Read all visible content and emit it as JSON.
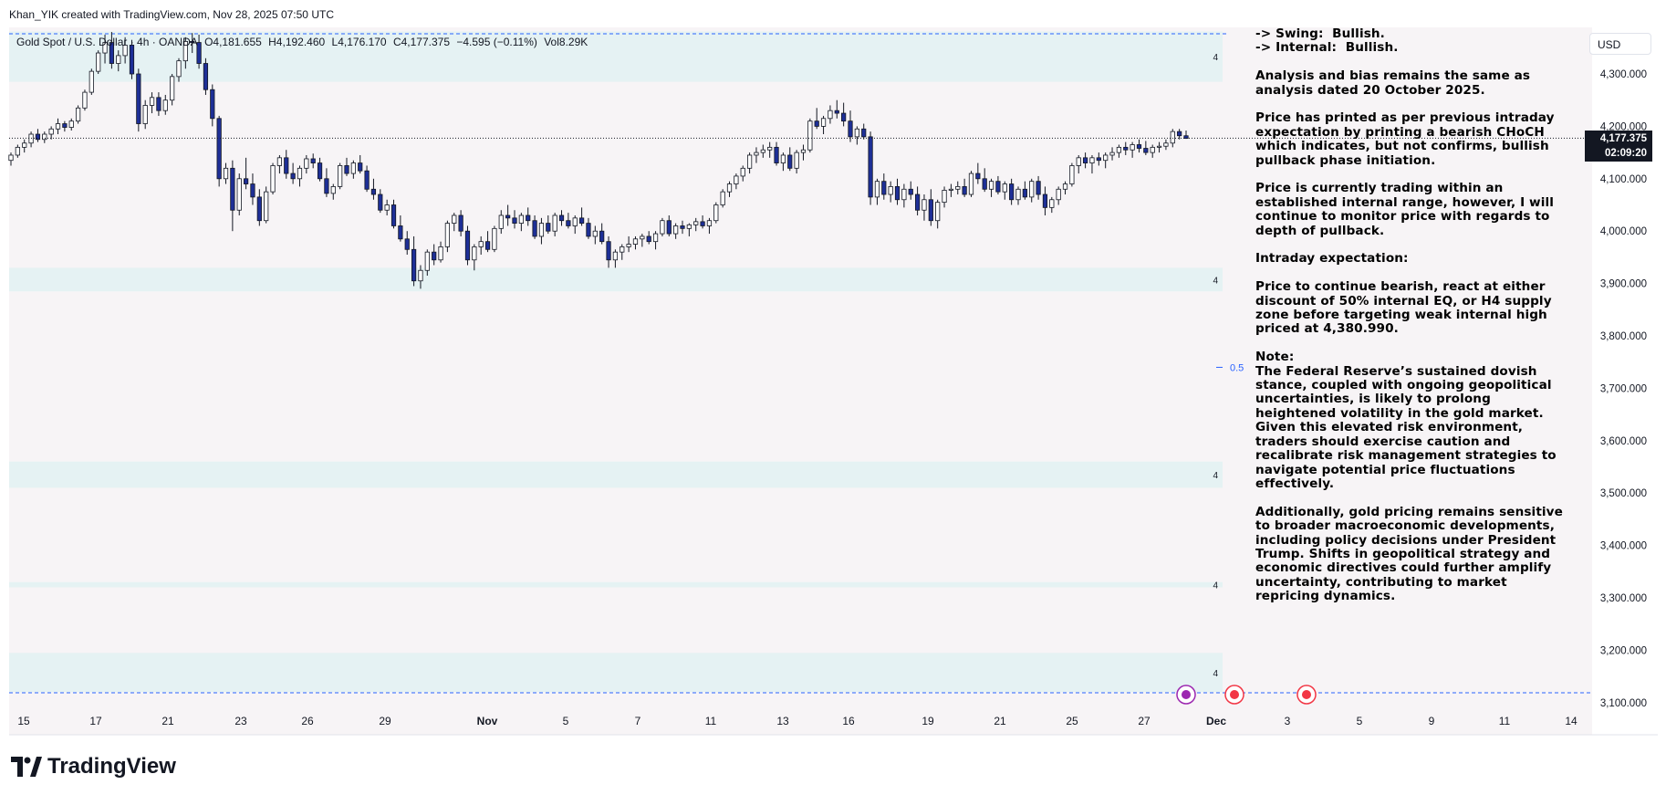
{
  "header": {
    "credit": "Khan_YIK created with TradingView.com, Nov 28, 2025 07:50 UTC"
  },
  "legend": {
    "symbol": "Gold Spot / U.S. Dollar · 4h · OANDA",
    "open": "O4,181.655",
    "high": "H4,192.460",
    "low": "L4,176.170",
    "close": "C4,177.375",
    "change": "−4.595 (−0.11%)",
    "volume": "Vol8.29K"
  },
  "currency_button": "USD",
  "last_price": {
    "price": "4,177.375",
    "countdown": "02:09:20"
  },
  "brand": "TradingView",
  "note_lines": [
    "-> Swing:  Bullish.\n-> Internal:  Bullish.",
    "Analysis and bias remains the same as analysis dated 20 October 2025.",
    "Price has printed as per previous intraday expectation by printing a bearish CHoCH which indicates, but not confirms, bullish pullback phase initiation.",
    "Price is currently trading within an established internal range, however, I will continue to monitor price with regards to depth of pullback.",
    "Intraday expectation:",
    "Price to continue bearish, react at either discount of 50% internal EQ, or H4 supply zone before targeting weak internal high priced at 4,380.990.",
    "Note:\nThe Federal Reserve’s sustained dovish stance, coupled with ongoing geopolitical uncertainties, is likely to prolong heightened volatility in the gold market. Given this elevated risk environment, traders should exercise caution and recalibrate risk management strategies to navigate potential price fluctuations effectively.",
    "Additionally, gold pricing remains sensitive to broader macroeconomic developments, including policy decisions under President Trump. Shifts in geopolitical strategy and economic directives could further amplify uncertainty, contributing to market repricing dynamics."
  ],
  "zone_label": "4",
  "eq_label": "0.5",
  "colors": {
    "up": "#ffffff",
    "down": "#1e2f97",
    "wick": "#131722",
    "zone": "#e5f2f3",
    "bg": "#f7f4f6",
    "dash": "#2962ff"
  },
  "chart_data": {
    "type": "candlestick",
    "title": "Gold Spot / U.S. Dollar · 4h · OANDA",
    "y_ticks": [
      "4,300.000",
      "4,200.000",
      "4,100.000",
      "4,000.000",
      "3,900.000",
      "3,800.000",
      "3,700.000",
      "3,600.000",
      "3,500.000",
      "3,400.000",
      "3,300.000",
      "3,200.000",
      "3,100.000"
    ],
    "y_tick_values": [
      4300,
      4200,
      4100,
      4000,
      3900,
      3800,
      3700,
      3600,
      3500,
      3400,
      3300,
      3200,
      3100
    ],
    "x_ticks": [
      "15",
      "17",
      "21",
      "23",
      "26",
      "29",
      "Nov",
      "5",
      "7",
      "11",
      "13",
      "16",
      "19",
      "21",
      "25",
      "27",
      "Dec",
      "3",
      "5",
      "9",
      "11",
      "14"
    ],
    "ylim": [
      3085,
      4385
    ],
    "current_price": 4177.375,
    "zones": [
      {
        "top": 4380.99,
        "bottom": 4285
      },
      {
        "top": 3930,
        "bottom": 3885
      },
      {
        "top": 3560,
        "bottom": 3510
      },
      {
        "top": 3330,
        "bottom": 3320
      },
      {
        "top": 3195,
        "bottom": 3120
      }
    ],
    "eq_level": 3740,
    "candles": [
      [
        4135,
        4150,
        4125,
        4145
      ],
      [
        4145,
        4165,
        4140,
        4160
      ],
      [
        4160,
        4175,
        4150,
        4168
      ],
      [
        4168,
        4190,
        4160,
        4185
      ],
      [
        4185,
        4195,
        4170,
        4175
      ],
      [
        4175,
        4190,
        4168,
        4185
      ],
      [
        4185,
        4200,
        4175,
        4195
      ],
      [
        4195,
        4215,
        4185,
        4205
      ],
      [
        4205,
        4210,
        4190,
        4198
      ],
      [
        4198,
        4215,
        4192,
        4210
      ],
      [
        4210,
        4240,
        4205,
        4235
      ],
      [
        4235,
        4270,
        4230,
        4265
      ],
      [
        4265,
        4310,
        4260,
        4305
      ],
      [
        4305,
        4345,
        4300,
        4340
      ],
      [
        4340,
        4375,
        4320,
        4360
      ],
      [
        4360,
        4380,
        4310,
        4320
      ],
      [
        4320,
        4345,
        4305,
        4335
      ],
      [
        4335,
        4370,
        4320,
        4355
      ],
      [
        4355,
        4365,
        4290,
        4300
      ],
      [
        4300,
        4310,
        4190,
        4205
      ],
      [
        4205,
        4250,
        4195,
        4240
      ],
      [
        4240,
        4265,
        4225,
        4255
      ],
      [
        4255,
        4265,
        4220,
        4230
      ],
      [
        4230,
        4260,
        4222,
        4250
      ],
      [
        4250,
        4300,
        4240,
        4295
      ],
      [
        4295,
        4330,
        4285,
        4325
      ],
      [
        4325,
        4370,
        4310,
        4362
      ],
      [
        4362,
        4378,
        4340,
        4360
      ],
      [
        4360,
        4375,
        4310,
        4320
      ],
      [
        4320,
        4330,
        4260,
        4270
      ],
      [
        4270,
        4280,
        4200,
        4215
      ],
      [
        4215,
        4220,
        4085,
        4100
      ],
      [
        4100,
        4130,
        4090,
        4120
      ],
      [
        4120,
        4135,
        4000,
        4040
      ],
      [
        4040,
        4110,
        4030,
        4100
      ],
      [
        4100,
        4140,
        4080,
        4090
      ],
      [
        4090,
        4110,
        4050,
        4065
      ],
      [
        4065,
        4080,
        4010,
        4020
      ],
      [
        4020,
        4085,
        4015,
        4075
      ],
      [
        4075,
        4130,
        4070,
        4125
      ],
      [
        4125,
        4145,
        4110,
        4140
      ],
      [
        4140,
        4155,
        4100,
        4110
      ],
      [
        4110,
        4130,
        4090,
        4100
      ],
      [
        4100,
        4125,
        4085,
        4120
      ],
      [
        4120,
        4145,
        4110,
        4138
      ],
      [
        4138,
        4148,
        4120,
        4130
      ],
      [
        4130,
        4140,
        4095,
        4100
      ],
      [
        4100,
        4120,
        4065,
        4072
      ],
      [
        4072,
        4090,
        4060,
        4085
      ],
      [
        4085,
        4130,
        4080,
        4125
      ],
      [
        4125,
        4140,
        4105,
        4110
      ],
      [
        4110,
        4135,
        4100,
        4130
      ],
      [
        4130,
        4145,
        4110,
        4115
      ],
      [
        4115,
        4125,
        4075,
        4080
      ],
      [
        4080,
        4100,
        4060,
        4070
      ],
      [
        4070,
        4080,
        4035,
        4040
      ],
      [
        4040,
        4060,
        4030,
        4050
      ],
      [
        4050,
        4060,
        4005,
        4010
      ],
      [
        4010,
        4030,
        3980,
        3985
      ],
      [
        3985,
        4000,
        3955,
        3965
      ],
      [
        3965,
        3990,
        3895,
        3905
      ],
      [
        3905,
        3935,
        3890,
        3925
      ],
      [
        3925,
        3965,
        3915,
        3960
      ],
      [
        3960,
        3975,
        3935,
        3945
      ],
      [
        3945,
        3980,
        3940,
        3970
      ],
      [
        3970,
        4020,
        3960,
        4015
      ],
      [
        4015,
        4035,
        4000,
        4030
      ],
      [
        4030,
        4040,
        3990,
        4000
      ],
      [
        4000,
        4010,
        3935,
        3945
      ],
      [
        3945,
        3975,
        3925,
        3970
      ],
      [
        3970,
        3990,
        3955,
        3980
      ],
      [
        3980,
        4000,
        3960,
        3965
      ],
      [
        3965,
        4010,
        3960,
        4005
      ],
      [
        4005,
        4040,
        3995,
        4030
      ],
      [
        4030,
        4050,
        4010,
        4025
      ],
      [
        4025,
        4040,
        4005,
        4015
      ],
      [
        4015,
        4035,
        4000,
        4030
      ],
      [
        4030,
        4045,
        4010,
        4020
      ],
      [
        4020,
        4030,
        3985,
        3990
      ],
      [
        3990,
        4025,
        3975,
        4015
      ],
      [
        4015,
        4030,
        3995,
        4000
      ],
      [
        4000,
        4035,
        3990,
        4030
      ],
      [
        4030,
        4040,
        4010,
        4020
      ],
      [
        4020,
        4035,
        4005,
        4010
      ],
      [
        4010,
        4030,
        3995,
        4025
      ],
      [
        4025,
        4045,
        4010,
        4015
      ],
      [
        4015,
        4025,
        3985,
        3990
      ],
      [
        3990,
        4010,
        3975,
        4000
      ],
      [
        4000,
        4015,
        3975,
        3980
      ],
      [
        3980,
        3990,
        3930,
        3945
      ],
      [
        3945,
        3965,
        3930,
        3960
      ],
      [
        3960,
        3975,
        3945,
        3970
      ],
      [
        3970,
        3990,
        3960,
        3975
      ],
      [
        3975,
        3990,
        3965,
        3985
      ],
      [
        3985,
        3995,
        3970,
        3990
      ],
      [
        3990,
        4000,
        3975,
        3980
      ],
      [
        3980,
        4000,
        3965,
        3995
      ],
      [
        3995,
        4025,
        3990,
        4020
      ],
      [
        4020,
        4030,
        3990,
        3995
      ],
      [
        3995,
        4015,
        3985,
        4010
      ],
      [
        4010,
        4020,
        3995,
        4005
      ],
      [
        4005,
        4015,
        3990,
        4012
      ],
      [
        4012,
        4025,
        4000,
        4018
      ],
      [
        4018,
        4030,
        4005,
        4010
      ],
      [
        4010,
        4025,
        3995,
        4020
      ],
      [
        4020,
        4055,
        4015,
        4050
      ],
      [
        4050,
        4080,
        4045,
        4075
      ],
      [
        4075,
        4095,
        4065,
        4090
      ],
      [
        4090,
        4110,
        4080,
        4105
      ],
      [
        4105,
        4125,
        4095,
        4120
      ],
      [
        4120,
        4150,
        4110,
        4145
      ],
      [
        4145,
        4160,
        4130,
        4150
      ],
      [
        4150,
        4165,
        4140,
        4155
      ],
      [
        4155,
        4170,
        4140,
        4160
      ],
      [
        4160,
        4170,
        4125,
        4130
      ],
      [
        4130,
        4150,
        4115,
        4145
      ],
      [
        4145,
        4160,
        4115,
        4120
      ],
      [
        4120,
        4155,
        4110,
        4150
      ],
      [
        4150,
        4165,
        4135,
        4155
      ],
      [
        4155,
        4215,
        4150,
        4210
      ],
      [
        4210,
        4235,
        4195,
        4200
      ],
      [
        4200,
        4220,
        4185,
        4215
      ],
      [
        4215,
        4240,
        4205,
        4230
      ],
      [
        4230,
        4250,
        4215,
        4225
      ],
      [
        4225,
        4245,
        4200,
        4210
      ],
      [
        4210,
        4230,
        4170,
        4180
      ],
      [
        4180,
        4200,
        4165,
        4195
      ],
      [
        4195,
        4205,
        4175,
        4180
      ],
      [
        4180,
        4190,
        4050,
        4065
      ],
      [
        4065,
        4100,
        4050,
        4095
      ],
      [
        4095,
        4110,
        4060,
        4070
      ],
      [
        4070,
        4095,
        4055,
        4085
      ],
      [
        4085,
        4100,
        4050,
        4060
      ],
      [
        4060,
        4090,
        4045,
        4080
      ],
      [
        4080,
        4095,
        4060,
        4070
      ],
      [
        4070,
        4085,
        4030,
        4040
      ],
      [
        4040,
        4070,
        4020,
        4060
      ],
      [
        4060,
        4080,
        4010,
        4020
      ],
      [
        4020,
        4060,
        4005,
        4055
      ],
      [
        4055,
        4085,
        4045,
        4078
      ],
      [
        4078,
        4090,
        4065,
        4080
      ],
      [
        4080,
        4095,
        4070,
        4085
      ],
      [
        4085,
        4100,
        4065,
        4070
      ],
      [
        4070,
        4115,
        4065,
        4110
      ],
      [
        4110,
        4130,
        4090,
        4100
      ],
      [
        4100,
        4120,
        4075,
        4080
      ],
      [
        4080,
        4100,
        4065,
        4095
      ],
      [
        4095,
        4105,
        4070,
        4075
      ],
      [
        4075,
        4095,
        4060,
        4090
      ],
      [
        4090,
        4100,
        4050,
        4060
      ],
      [
        4060,
        4085,
        4050,
        4080
      ],
      [
        4080,
        4095,
        4060,
        4065
      ],
      [
        4065,
        4100,
        4055,
        4095
      ],
      [
        4095,
        4105,
        4060,
        4070
      ],
      [
        4070,
        4085,
        4030,
        4045
      ],
      [
        4045,
        4065,
        4035,
        4060
      ],
      [
        4060,
        4085,
        4050,
        4080
      ],
      [
        4080,
        4095,
        4070,
        4090
      ],
      [
        4090,
        4130,
        4085,
        4125
      ],
      [
        4125,
        4145,
        4110,
        4140
      ],
      [
        4140,
        4150,
        4120,
        4130
      ],
      [
        4130,
        4145,
        4110,
        4140
      ],
      [
        4140,
        4150,
        4125,
        4135
      ],
      [
        4135,
        4150,
        4120,
        4145
      ],
      [
        4145,
        4160,
        4135,
        4150
      ],
      [
        4150,
        4165,
        4140,
        4160
      ],
      [
        4160,
        4170,
        4145,
        4155
      ],
      [
        4155,
        4170,
        4140,
        4165
      ],
      [
        4165,
        4175,
        4150,
        4158
      ],
      [
        4158,
        4172,
        4145,
        4150
      ],
      [
        4150,
        4165,
        4140,
        4160
      ],
      [
        4160,
        4170,
        4150,
        4162
      ],
      [
        4162,
        4175,
        4155,
        4168
      ],
      [
        4168,
        4195,
        4160,
        4190
      ],
      [
        4190,
        4195,
        4175,
        4182
      ],
      [
        4182,
        4192,
        4176,
        4177
      ]
    ]
  }
}
